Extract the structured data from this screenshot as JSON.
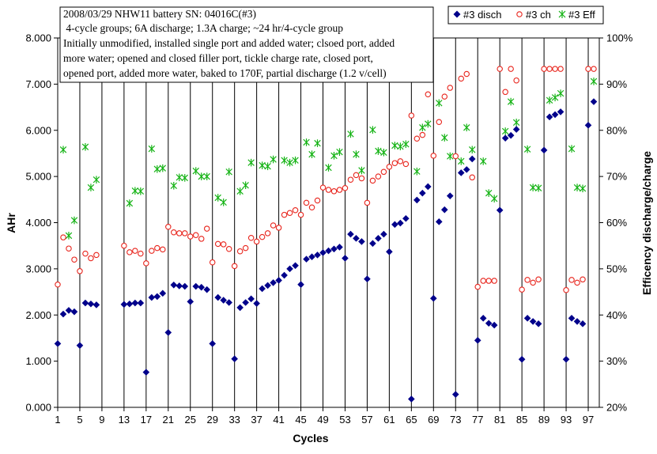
{
  "chart_data": {
    "type": "scatter",
    "title_lines": [
      "2008/03/29 NHW11 battery SN: 04016C(#3)",
      " 4-cycle groups; 6A discharge; 1.3A charge; ~24 hr/4-cycle group",
      "Initially unmodified, installed single port and added water; clsoed port, added",
      "more water; opened and closed filler port, tickle charge rate, closed port,",
      "opened port, added more water, baked to 170F, partial discharge (1.2 v/cell)"
    ],
    "xlabel": "Cycles",
    "ylabel": "AHr",
    "y2label": "Efficency discharge/charge",
    "xlim": [
      1,
      99
    ],
    "ylim": [
      0,
      8
    ],
    "y2lim": [
      20,
      100
    ],
    "x_ticks": [
      1,
      5,
      9,
      13,
      17,
      21,
      25,
      29,
      33,
      37,
      41,
      45,
      49,
      53,
      57,
      61,
      65,
      69,
      73,
      77,
      81,
      85,
      89,
      93,
      97
    ],
    "x_tick_labels": [
      "1",
      "5",
      "9",
      "13",
      "17",
      "21",
      "25",
      "29",
      "33",
      "37",
      "41",
      "45",
      "49",
      "53",
      "57",
      "61",
      "65",
      "69",
      "73",
      "77",
      "81",
      "85",
      "89",
      "93",
      "97"
    ],
    "y_ticks": [
      0,
      1,
      2,
      3,
      4,
      5,
      6,
      7,
      8
    ],
    "y_tick_labels": [
      "0.000",
      "1.000",
      "2.000",
      "3.000",
      "4.000",
      "5.000",
      "6.000",
      "7.000",
      "8.000"
    ],
    "y2_ticks": [
      20,
      30,
      40,
      50,
      60,
      70,
      80,
      90,
      100
    ],
    "y2_tick_labels": [
      "20%",
      "30%",
      "40%",
      "50%",
      "60%",
      "70%",
      "80%",
      "90%",
      "100%"
    ],
    "grid": "vertical",
    "legend_position": "top-right",
    "series": [
      {
        "name": "#3 disch",
        "axis": "left",
        "marker": "diamond",
        "color": "#00008b",
        "x": [
          1,
          2,
          3,
          4,
          5,
          6,
          7,
          8,
          13,
          14,
          15,
          16,
          17,
          18,
          19,
          20,
          21,
          22,
          23,
          24,
          25,
          26,
          27,
          28,
          29,
          30,
          31,
          32,
          33,
          34,
          35,
          36,
          37,
          38,
          39,
          40,
          41,
          42,
          43,
          44,
          45,
          46,
          47,
          48,
          49,
          50,
          51,
          52,
          53,
          54,
          55,
          56,
          57,
          58,
          59,
          60,
          61,
          62,
          63,
          64,
          65,
          66,
          67,
          68,
          69,
          70,
          71,
          72,
          73,
          74,
          75,
          76,
          77,
          78,
          79,
          80,
          81,
          82,
          83,
          84,
          85,
          86,
          87,
          88,
          89,
          90,
          91,
          92,
          93,
          94,
          95,
          96,
          97,
          98
        ],
        "y": [
          1.38,
          2.02,
          2.1,
          2.07,
          1.34,
          2.26,
          2.24,
          2.22,
          2.23,
          2.24,
          2.26,
          2.26,
          0.76,
          2.38,
          2.4,
          2.47,
          1.62,
          2.65,
          2.63,
          2.62,
          2.29,
          2.62,
          2.6,
          2.55,
          1.38,
          2.38,
          2.32,
          2.27,
          1.05,
          2.16,
          2.27,
          2.35,
          2.25,
          2.57,
          2.64,
          2.7,
          2.75,
          2.86,
          3.0,
          3.07,
          2.66,
          3.21,
          3.26,
          3.3,
          3.35,
          3.39,
          3.43,
          3.47,
          3.23,
          3.75,
          3.66,
          3.59,
          2.78,
          3.55,
          3.66,
          3.75,
          3.37,
          3.96,
          3.99,
          4.09,
          0.18,
          4.49,
          4.64,
          4.78,
          2.36,
          4.02,
          4.28,
          4.58,
          0.28,
          5.08,
          5.15,
          5.38,
          1.45,
          1.93,
          1.82,
          1.78,
          4.27,
          5.83,
          5.89,
          6.02,
          1.04,
          1.93,
          1.86,
          1.81,
          5.57,
          6.29,
          6.34,
          6.4,
          1.04,
          1.93,
          1.86,
          1.81,
          6.11,
          6.62
        ]
      },
      {
        "name": "#3 ch",
        "axis": "left",
        "marker": "circle",
        "color": "#e8241c",
        "x": [
          1,
          2,
          3,
          4,
          5,
          6,
          7,
          8,
          13,
          14,
          15,
          16,
          17,
          18,
          19,
          20,
          21,
          22,
          23,
          24,
          25,
          26,
          27,
          28,
          29,
          30,
          31,
          32,
          33,
          34,
          35,
          36,
          37,
          38,
          39,
          40,
          41,
          42,
          43,
          44,
          45,
          46,
          47,
          48,
          49,
          50,
          51,
          52,
          53,
          54,
          55,
          56,
          57,
          58,
          59,
          60,
          61,
          62,
          63,
          64,
          65,
          66,
          67,
          68,
          69,
          70,
          71,
          72,
          73,
          74,
          75,
          76,
          77,
          78,
          79,
          80,
          81,
          82,
          83,
          84,
          85,
          86,
          87,
          88,
          89,
          90,
          91,
          92,
          93,
          94,
          95,
          96,
          97,
          98
        ],
        "y": [
          2.66,
          3.68,
          3.44,
          3.2,
          2.95,
          3.33,
          3.23,
          3.3,
          3.5,
          3.36,
          3.39,
          3.33,
          3.12,
          3.39,
          3.45,
          3.42,
          3.91,
          3.79,
          3.77,
          3.77,
          3.7,
          3.73,
          3.65,
          3.87,
          3.14,
          3.54,
          3.53,
          3.43,
          3.06,
          3.38,
          3.45,
          3.67,
          3.59,
          3.69,
          3.77,
          3.94,
          3.89,
          4.17,
          4.21,
          4.27,
          4.17,
          4.43,
          4.33,
          4.48,
          4.76,
          4.71,
          4.68,
          4.71,
          4.75,
          4.93,
          5.03,
          4.96,
          4.43,
          4.91,
          5.0,
          5.1,
          5.21,
          5.29,
          5.33,
          5.27,
          6.32,
          5.82,
          5.9,
          6.78,
          5.45,
          6.18,
          6.73,
          6.92,
          5.44,
          7.12,
          7.22,
          4.98,
          2.61,
          2.74,
          2.74,
          2.74,
          7.33,
          6.83,
          7.33,
          7.08,
          2.55,
          2.76,
          2.7,
          2.77,
          7.33,
          7.33,
          7.33,
          7.33,
          2.54,
          2.76,
          2.7,
          2.77,
          7.33,
          7.33
        ]
      },
      {
        "name": "#3 Eff",
        "axis": "right",
        "marker": "star",
        "color": "#15b315",
        "x": [
          2,
          3,
          4,
          6,
          7,
          8,
          14,
          15,
          16,
          18,
          19,
          20,
          22,
          23,
          24,
          26,
          27,
          28,
          30,
          31,
          32,
          34,
          35,
          36,
          38,
          39,
          40,
          42,
          43,
          44,
          46,
          47,
          48,
          50,
          51,
          52,
          54,
          55,
          56,
          58,
          59,
          60,
          62,
          63,
          64,
          66,
          67,
          68,
          70,
          71,
          72,
          74,
          75,
          76,
          78,
          79,
          80,
          82,
          83,
          84,
          86,
          87,
          88,
          90,
          91,
          92,
          94,
          95,
          96,
          98
        ],
        "y": [
          75.8,
          57.2,
          60.5,
          76.4,
          67.6,
          69.3,
          64.2,
          66.9,
          66.8,
          76.0,
          71.6,
          71.8,
          68.0,
          69.8,
          69.7,
          71.2,
          70.0,
          70.0,
          65.4,
          64.4,
          71.0,
          66.8,
          68.1,
          73.0,
          72.4,
          72.2,
          73.7,
          73.5,
          73.0,
          73.5,
          77.4,
          74.8,
          77.2,
          71.9,
          74.5,
          75.3,
          79.2,
          74.8,
          71.3,
          80.1,
          75.5,
          75.2,
          76.7,
          76.5,
          77.0,
          71.1,
          80.6,
          81.4,
          85.9,
          78.4,
          74.4,
          73.3,
          80.6,
          75.8,
          73.3,
          66.4,
          65.2,
          79.8,
          86.2,
          81.7,
          75.9,
          67.6,
          67.5,
          86.5,
          87.1,
          88.0,
          76.0,
          67.6,
          67.4,
          90.6
        ]
      }
    ]
  }
}
